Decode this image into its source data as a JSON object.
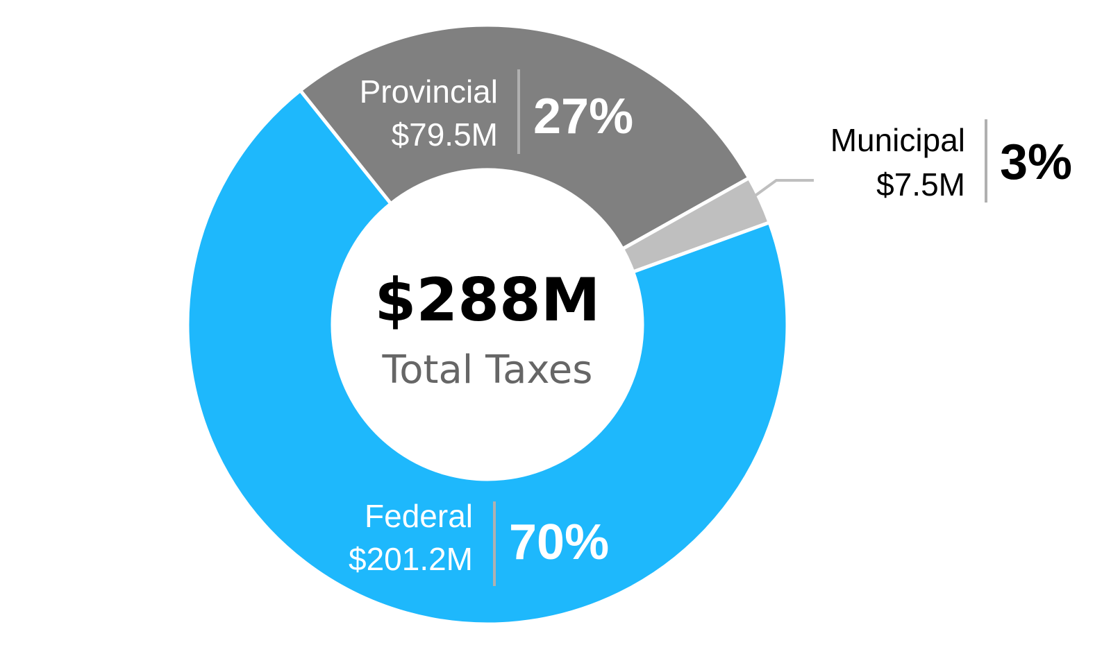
{
  "chart_data": {
    "type": "pie",
    "variant": "donut",
    "center": {
      "total": "$288M",
      "label": "Total Taxes"
    },
    "slices": [
      {
        "key": "provincial",
        "name": "Provincial",
        "amount": "$79.5M",
        "value": 79.5,
        "percent": 27,
        "percent_label": "27%",
        "color": "#808080",
        "label_color": "#ffffff"
      },
      {
        "key": "municipal",
        "name": "Municipal",
        "amount": "$7.5M",
        "value": 7.5,
        "percent": 3,
        "percent_label": "3%",
        "color": "#bfbfbf",
        "label_color": "#000000"
      },
      {
        "key": "federal",
        "name": "Federal",
        "amount": "$201.2M",
        "value": 201.2,
        "percent": 70,
        "percent_label": "70%",
        "color": "#1eb8fc",
        "label_color": "#ffffff"
      }
    ],
    "colors": {
      "divider": "#b0b0b0",
      "leader_line": "#bfbfbf",
      "center_total": "#000000",
      "center_label": "#666666"
    }
  }
}
